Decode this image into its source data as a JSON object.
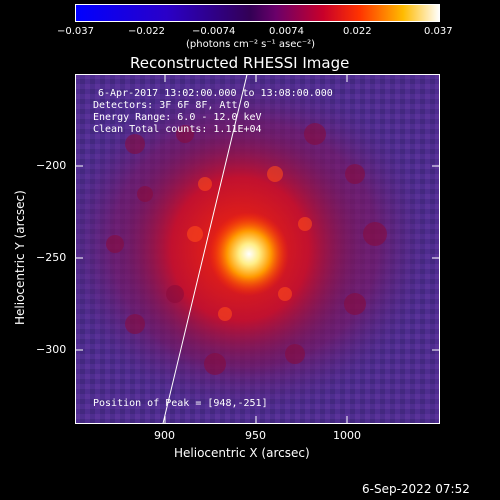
{
  "colorbar": {
    "ticks": [
      "−0.037",
      "−0.022",
      "−0.0074",
      "0.0074",
      "0.022",
      "0.037"
    ],
    "units": "(photons cm⁻² s⁻¹ asec⁻²)"
  },
  "plot": {
    "title": "Reconstructed RHESSI Image",
    "xlabel": "Heliocentric X (arcsec)",
    "ylabel": "Heliocentric Y (arcsec)",
    "xticks": [
      "900",
      "950",
      "1000"
    ],
    "yticks": [
      "−200",
      "−250",
      "−300"
    ]
  },
  "info": {
    "line1": "6-Apr-2017 13:02:00.000 to 13:08:00.000",
    "line2": "Detectors: 3F 6F 8F, Att 0",
    "line3": "Energy Range: 6.0 - 12.0 keV",
    "line4": "Clean     Total counts: 1.11E+04",
    "peak": "Position of Peak = [948,-251]"
  },
  "footer": {
    "date": "6-Sep-2022 07:52"
  }
}
